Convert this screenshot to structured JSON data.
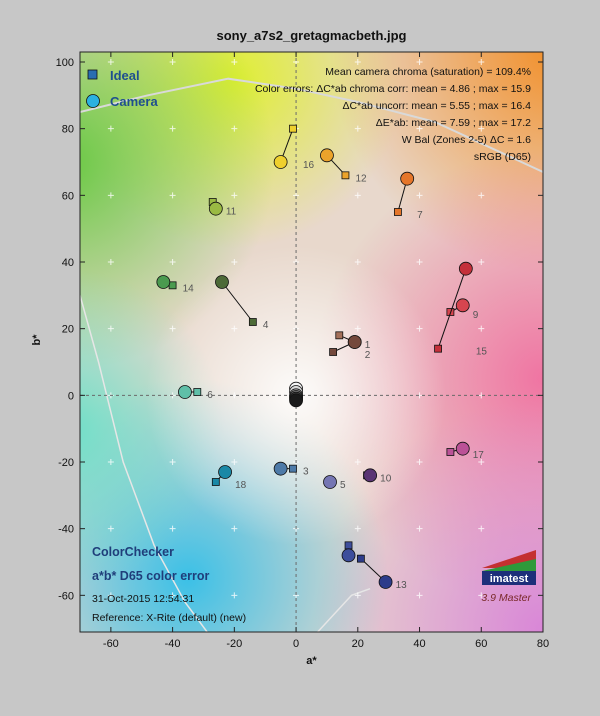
{
  "page": {
    "background": "#c7c7c7"
  },
  "chart_data": {
    "type": "scatter",
    "title": "sony_a7s2_gretagmacbeth.jpg",
    "xlabel": "a*",
    "ylabel": "b*",
    "xlim": [
      -70,
      80
    ],
    "ylim": [
      -71,
      103
    ],
    "xticks": [
      -60,
      -40,
      -20,
      0,
      20,
      40,
      60,
      80
    ],
    "yticks": [
      -60,
      -40,
      -20,
      0,
      20,
      40,
      60,
      80,
      100
    ],
    "grid": true,
    "legend": {
      "placement": "top-left",
      "entries": [
        {
          "label": "Ideal",
          "marker": "square"
        },
        {
          "label": "Camera",
          "marker": "circle"
        }
      ]
    },
    "stats_text": [
      "Mean camera chroma (saturation) = 109.4%",
      "Color errors: ΔC*ab chroma corr:  mean = 4.86 ;  max = 15.9",
      "ΔC*ab uncorr:  mean = 5.55 ;  max = 16.4",
      "ΔE*ab:  mean = 7.59 ;  max = 17.2",
      "W Bal (Zones 2-5) ΔC = 1.6",
      "sRGB (D65)"
    ],
    "bottom_left_text": [
      "ColorChecker",
      "a*b* D65 color error",
      "31-Oct-2015 12:54:31",
      "Reference: X-Rite (default) (new)"
    ],
    "logo": {
      "text": "imatest",
      "version": "3.9 Master"
    },
    "series": [
      {
        "name": "Ideal",
        "marker": "square"
      },
      {
        "name": "Camera",
        "marker": "circle"
      }
    ],
    "patches": [
      {
        "id": "1",
        "ideal": [
          14,
          18
        ],
        "camera": [
          19,
          16
        ],
        "color": "#a4705a"
      },
      {
        "id": "2",
        "ideal": [
          12,
          13
        ],
        "camera": [
          19,
          16
        ],
        "color": "#74483b"
      },
      {
        "id": "3",
        "ideal": [
          -1,
          -22
        ],
        "camera": [
          -5,
          -22
        ],
        "color": "#4d7aa8"
      },
      {
        "id": "4",
        "ideal": [
          -14,
          22
        ],
        "camera": [
          -24,
          34
        ],
        "color": "#4d6a37"
      },
      {
        "id": "5",
        "ideal": [
          11,
          -26
        ],
        "camera": [
          11,
          -26
        ],
        "color": "#7576b3"
      },
      {
        "id": "6",
        "ideal": [
          -32,
          1
        ],
        "camera": [
          -36,
          1
        ],
        "color": "#5fbfa8"
      },
      {
        "id": "7",
        "ideal": [
          33,
          55
        ],
        "camera": [
          36,
          65
        ],
        "color": "#e5762a"
      },
      {
        "id": "8",
        "ideal": [
          17,
          -45
        ],
        "camera": [
          17,
          -48
        ],
        "color": "#3d4e9c"
      },
      {
        "id": "9",
        "ideal": [
          50,
          25
        ],
        "camera": [
          54,
          27
        ],
        "color": "#d6454f"
      },
      {
        "id": "10",
        "ideal": [
          23,
          -24
        ],
        "camera": [
          24,
          -24
        ],
        "color": "#5a3474"
      },
      {
        "id": "11",
        "ideal": [
          -27,
          58
        ],
        "camera": [
          -26,
          56
        ],
        "color": "#9aba43"
      },
      {
        "id": "12",
        "ideal": [
          16,
          66
        ],
        "camera": [
          10,
          72
        ],
        "color": "#eba32b"
      },
      {
        "id": "13",
        "ideal": [
          21,
          -49
        ],
        "camera": [
          29,
          -56
        ],
        "color": "#2d3c8a"
      },
      {
        "id": "14",
        "ideal": [
          -40,
          33
        ],
        "camera": [
          -43,
          34
        ],
        "color": "#4a9a4f"
      },
      {
        "id": "15",
        "ideal": [
          46,
          14
        ],
        "camera": [
          55,
          38
        ],
        "color": "#c4303a"
      },
      {
        "id": "16",
        "ideal": [
          -1,
          80
        ],
        "camera": [
          -5,
          70
        ],
        "color": "#efd02e"
      },
      {
        "id": "17",
        "ideal": [
          50,
          -17
        ],
        "camera": [
          54,
          -16
        ],
        "color": "#bb5297"
      },
      {
        "id": "18",
        "ideal": [
          -26,
          -26
        ],
        "camera": [
          -23,
          -23
        ],
        "color": "#1a88a6"
      }
    ]
  }
}
